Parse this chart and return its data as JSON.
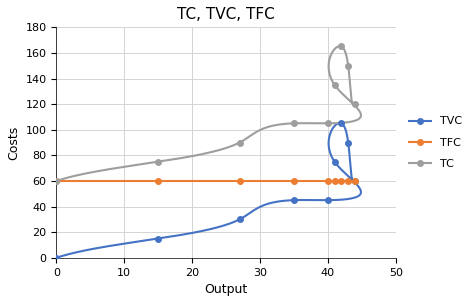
{
  "title": "TC, TVC, TFC",
  "xlabel": "Output",
  "ylabel": "Costs",
  "tvc_x": [
    0,
    15,
    27,
    35,
    40,
    41,
    42,
    43,
    44
  ],
  "tvc_y": [
    0,
    15,
    30,
    45,
    45,
    75,
    105,
    90,
    60
  ],
  "tfc_x": [
    0,
    15,
    27,
    35,
    40,
    41,
    42,
    43,
    44
  ],
  "tfc_y": [
    60,
    60,
    60,
    60,
    60,
    60,
    60,
    60,
    60
  ],
  "tc_x": [
    0,
    15,
    27,
    35,
    40,
    41,
    42,
    43,
    44
  ],
  "tc_y": [
    60,
    75,
    90,
    105,
    105,
    135,
    165,
    150,
    120
  ],
  "tvc_color": "#4472C4",
  "tfc_color": "#ED7D31",
  "tc_color": "#9E9E9E",
  "xlim": [
    0,
    50
  ],
  "ylim": [
    0,
    180
  ],
  "xticks": [
    0,
    10,
    20,
    30,
    40,
    50
  ],
  "yticks": [
    0,
    20,
    40,
    60,
    80,
    100,
    120,
    140,
    160,
    180
  ],
  "bg_color": "#ffffff",
  "grid_color": "#d4d4d4",
  "title_fontsize": 11,
  "axis_fontsize": 9,
  "tick_fontsize": 8
}
